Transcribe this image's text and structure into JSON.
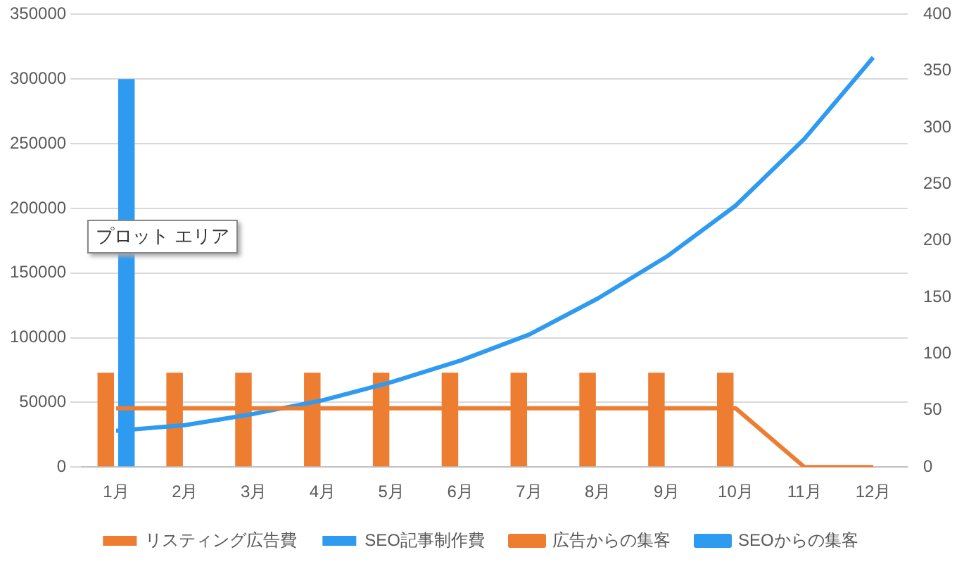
{
  "chart_data": {
    "type": "bar",
    "categories": [
      "1月",
      "2月",
      "3月",
      "4月",
      "5月",
      "6月",
      "7月",
      "8月",
      "9月",
      "10月",
      "11月",
      "12月"
    ],
    "series": [
      {
        "name": "リスティング広告費",
        "color": "#ed7d31",
        "values": [
          73000,
          73000,
          73000,
          73000,
          73000,
          73000,
          73000,
          73000,
          73000,
          73000,
          0,
          0
        ]
      },
      {
        "name": "SEO記事制作費",
        "color": "#2e9af0",
        "values": [
          300000,
          0,
          0,
          0,
          0,
          0,
          0,
          0,
          0,
          0,
          0,
          0
        ]
      },
      {
        "name": "広告からの集客",
        "type": "line",
        "axis": "y2",
        "color": "#ed7d31",
        "values": [
          52,
          52,
          52,
          52,
          52,
          52,
          52,
          52,
          52,
          52,
          0,
          0
        ]
      },
      {
        "name": "SEOからの集客",
        "type": "line",
        "axis": "y2",
        "color": "#2e9af0",
        "values": [
          32,
          37,
          47,
          59,
          75,
          94,
          117,
          149,
          186,
          231,
          290,
          362
        ]
      }
    ],
    "ylim": [
      0,
      350000
    ],
    "yticks": [
      0,
      50000,
      100000,
      150000,
      200000,
      250000,
      300000,
      350000
    ],
    "y2lim": [
      0,
      400
    ],
    "y2ticks": [
      0,
      50,
      100,
      150,
      200,
      250,
      300,
      350,
      400
    ],
    "grid": "y",
    "legend": "bottom",
    "marker": "none",
    "annotations": [
      "プロット エリア"
    ]
  }
}
